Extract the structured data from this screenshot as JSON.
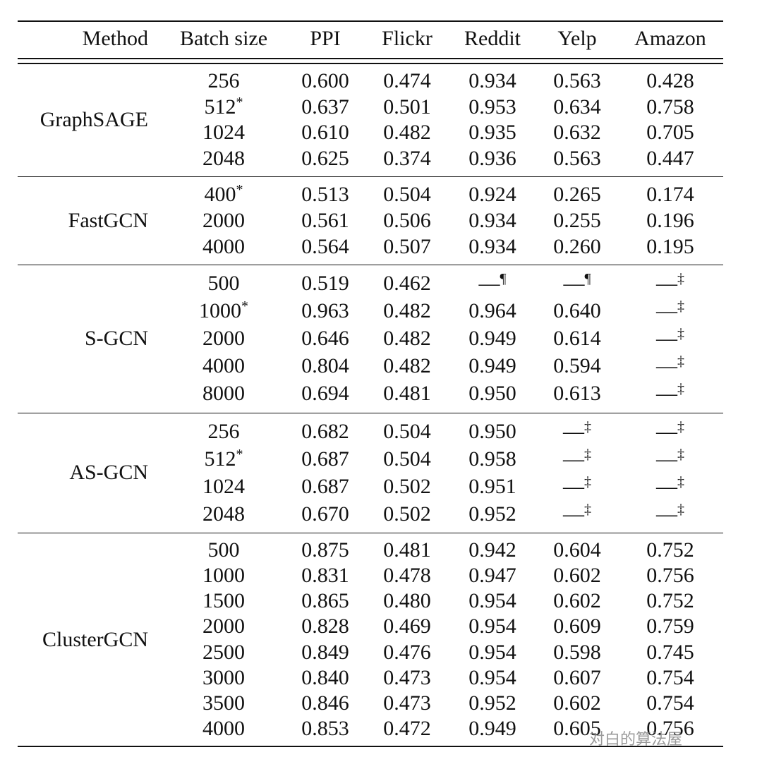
{
  "header": [
    "Method",
    "Batch size",
    "PPI",
    "Flickr",
    "Reddit",
    "Yelp",
    "Amazon"
  ],
  "groups": [
    {
      "method": "GraphSAGE",
      "rows": [
        [
          "256",
          "0.600",
          "0.474",
          "0.934",
          "0.563",
          "0.428"
        ],
        [
          {
            "value": "512",
            "sup": "*"
          },
          "0.637",
          "0.501",
          "0.953",
          "0.634",
          "0.758"
        ],
        [
          "1024",
          "0.610",
          "0.482",
          "0.935",
          "0.632",
          "0.705"
        ],
        [
          "2048",
          "0.625",
          "0.374",
          "0.936",
          "0.563",
          "0.447"
        ]
      ]
    },
    {
      "method": "FastGCN",
      "rows": [
        [
          {
            "value": "400",
            "sup": "*"
          },
          "0.513",
          "0.504",
          "0.924",
          "0.265",
          "0.174"
        ],
        [
          "2000",
          "0.561",
          "0.506",
          "0.934",
          "0.255",
          "0.196"
        ],
        [
          "4000",
          "0.564",
          "0.507",
          "0.934",
          "0.260",
          "0.195"
        ]
      ]
    },
    {
      "method": "S-GCN",
      "rows": [
        [
          "500",
          "0.519",
          "0.462",
          {
            "value": "—",
            "sup": "¶"
          },
          {
            "value": "—",
            "sup": "¶"
          },
          {
            "value": "—",
            "sup": "‡"
          }
        ],
        [
          {
            "value": "1000",
            "sup": "*"
          },
          "0.963",
          "0.482",
          "0.964",
          "0.640",
          {
            "value": "—",
            "sup": "‡"
          }
        ],
        [
          "2000",
          "0.646",
          "0.482",
          "0.949",
          "0.614",
          {
            "value": "—",
            "sup": "‡"
          }
        ],
        [
          "4000",
          "0.804",
          "0.482",
          "0.949",
          "0.594",
          {
            "value": "—",
            "sup": "‡"
          }
        ],
        [
          "8000",
          "0.694",
          "0.481",
          "0.950",
          "0.613",
          {
            "value": "—",
            "sup": "‡"
          }
        ]
      ]
    },
    {
      "method": "AS-GCN",
      "rows": [
        [
          "256",
          "0.682",
          "0.504",
          "0.950",
          {
            "value": "—",
            "sup": "‡"
          },
          {
            "value": "—",
            "sup": "‡"
          }
        ],
        [
          {
            "value": "512",
            "sup": "*"
          },
          "0.687",
          "0.504",
          "0.958",
          {
            "value": "—",
            "sup": "‡"
          },
          {
            "value": "—",
            "sup": "‡"
          }
        ],
        [
          "1024",
          "0.687",
          "0.502",
          "0.951",
          {
            "value": "—",
            "sup": "‡"
          },
          {
            "value": "—",
            "sup": "‡"
          }
        ],
        [
          "2048",
          "0.670",
          "0.502",
          "0.952",
          {
            "value": "—",
            "sup": "‡"
          },
          {
            "value": "—",
            "sup": "‡"
          }
        ]
      ]
    },
    {
      "method": "ClusterGCN",
      "rows": [
        [
          "500",
          "0.875",
          "0.481",
          "0.942",
          "0.604",
          "0.752"
        ],
        [
          "1000",
          "0.831",
          "0.478",
          "0.947",
          "0.602",
          "0.756"
        ],
        [
          "1500",
          "0.865",
          "0.480",
          "0.954",
          "0.602",
          "0.752"
        ],
        [
          "2000",
          "0.828",
          "0.469",
          "0.954",
          "0.609",
          "0.759"
        ],
        [
          "2500",
          "0.849",
          "0.476",
          "0.954",
          "0.598",
          "0.745"
        ],
        [
          "3000",
          "0.840",
          "0.473",
          "0.954",
          "0.607",
          "0.754"
        ],
        [
          "3500",
          "0.846",
          "0.473",
          "0.952",
          "0.602",
          "0.754"
        ],
        [
          "4000",
          "0.853",
          "0.472",
          "0.949",
          "0.605",
          "0.756"
        ]
      ]
    }
  ],
  "watermark": "对白的算法屋"
}
